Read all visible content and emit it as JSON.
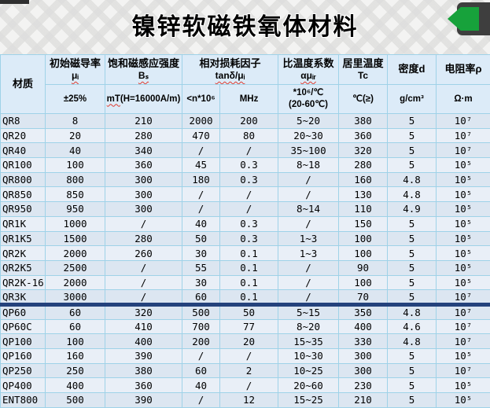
{
  "page": {
    "title": "镍锌软磁铁氧体材料"
  },
  "banner": {
    "back_button": "back-arrow"
  },
  "table": {
    "header": {
      "material": "材质",
      "mu": {
        "title": "初始磁导率",
        "symbol": "μᵢ",
        "sub": "±25%"
      },
      "bs": {
        "title": "饱和磁感应强度",
        "symbol": "Bₛ",
        "sub_wavy": "mT",
        "sub_rest": "(H=16000A/m)"
      },
      "loss": {
        "title": "相对损耗因子",
        "symbol": "tanδ/μᵢ",
        "sub1": "<n*10⁶",
        "sub2": "MHz"
      },
      "tempco": {
        "title": "比温度系数",
        "symbol": "αμᵢᵣ",
        "sub_line1": "*10⁶/℃",
        "sub_line2": "(20-60℃)"
      },
      "curie": {
        "title": "居里温度",
        "symbol": "Tc",
        "sub": "℃(≥)"
      },
      "density": {
        "title": "密度d",
        "sub": "g/cm³"
      },
      "resistivity": {
        "title": "电阻率ρ",
        "sub": "Ω·m"
      }
    },
    "divider_after_index": 12,
    "rows": [
      [
        "QR8",
        "8",
        "210",
        "2000",
        "200",
        "5~20",
        "380",
        "5",
        "10⁷"
      ],
      [
        "QR20",
        "20",
        "280",
        "470",
        "80",
        "20~30",
        "360",
        "5",
        "10⁷"
      ],
      [
        "QR40",
        "40",
        "340",
        "/",
        "/",
        "35~100",
        "320",
        "5",
        "10⁷"
      ],
      [
        "QR100",
        "100",
        "360",
        "45",
        "0.3",
        "8~18",
        "280",
        "5",
        "10⁵"
      ],
      [
        "QR800",
        "800",
        "300",
        "180",
        "0.3",
        "/",
        "160",
        "4.8",
        "10⁵"
      ],
      [
        "QR850",
        "850",
        "300",
        "/",
        "/",
        "/",
        "130",
        "4.8",
        "10⁵"
      ],
      [
        "QR950",
        "950",
        "300",
        "/",
        "/",
        "8~14",
        "110",
        "4.9",
        "10⁵"
      ],
      [
        "QR1K",
        "1000",
        "/",
        "40",
        "0.3",
        "/",
        "150",
        "5",
        "10⁵"
      ],
      [
        "QR1K5",
        "1500",
        "280",
        "50",
        "0.3",
        "1~3",
        "100",
        "5",
        "10⁵"
      ],
      [
        "QR2K",
        "2000",
        "260",
        "30",
        "0.1",
        "1~3",
        "100",
        "5",
        "10⁵"
      ],
      [
        "QR2K5",
        "2500",
        "/",
        "55",
        "0.1",
        "/",
        "90",
        "5",
        "10⁵"
      ],
      [
        "QR2K-16",
        "2000",
        "/",
        "30",
        "0.1",
        "/",
        "100",
        "5",
        "10⁵"
      ],
      [
        "QR3K",
        "3000",
        "/",
        "60",
        "0.1",
        "/",
        "70",
        "5",
        "10⁷"
      ],
      [
        "QP60",
        "60",
        "320",
        "500",
        "50",
        "5~15",
        "350",
        "4.8",
        "10⁷"
      ],
      [
        "QP60C",
        "60",
        "410",
        "700",
        "77",
        "8~20",
        "400",
        "4.6",
        "10⁷"
      ],
      [
        "QP100",
        "100",
        "400",
        "200",
        "20",
        "15~35",
        "330",
        "4.8",
        "10⁷"
      ],
      [
        "QP160",
        "160",
        "390",
        "/",
        "/",
        "10~30",
        "300",
        "5",
        "10⁵"
      ],
      [
        "QP250",
        "250",
        "380",
        "60",
        "2",
        "10~25",
        "300",
        "5",
        "10⁷"
      ],
      [
        "QP400",
        "400",
        "360",
        "40",
        "/",
        "20~60",
        "230",
        "5",
        "10⁵"
      ],
      [
        "ENT800",
        "500",
        "390",
        "/",
        "12",
        "15~25",
        "210",
        "5",
        "10⁵"
      ]
    ]
  }
}
